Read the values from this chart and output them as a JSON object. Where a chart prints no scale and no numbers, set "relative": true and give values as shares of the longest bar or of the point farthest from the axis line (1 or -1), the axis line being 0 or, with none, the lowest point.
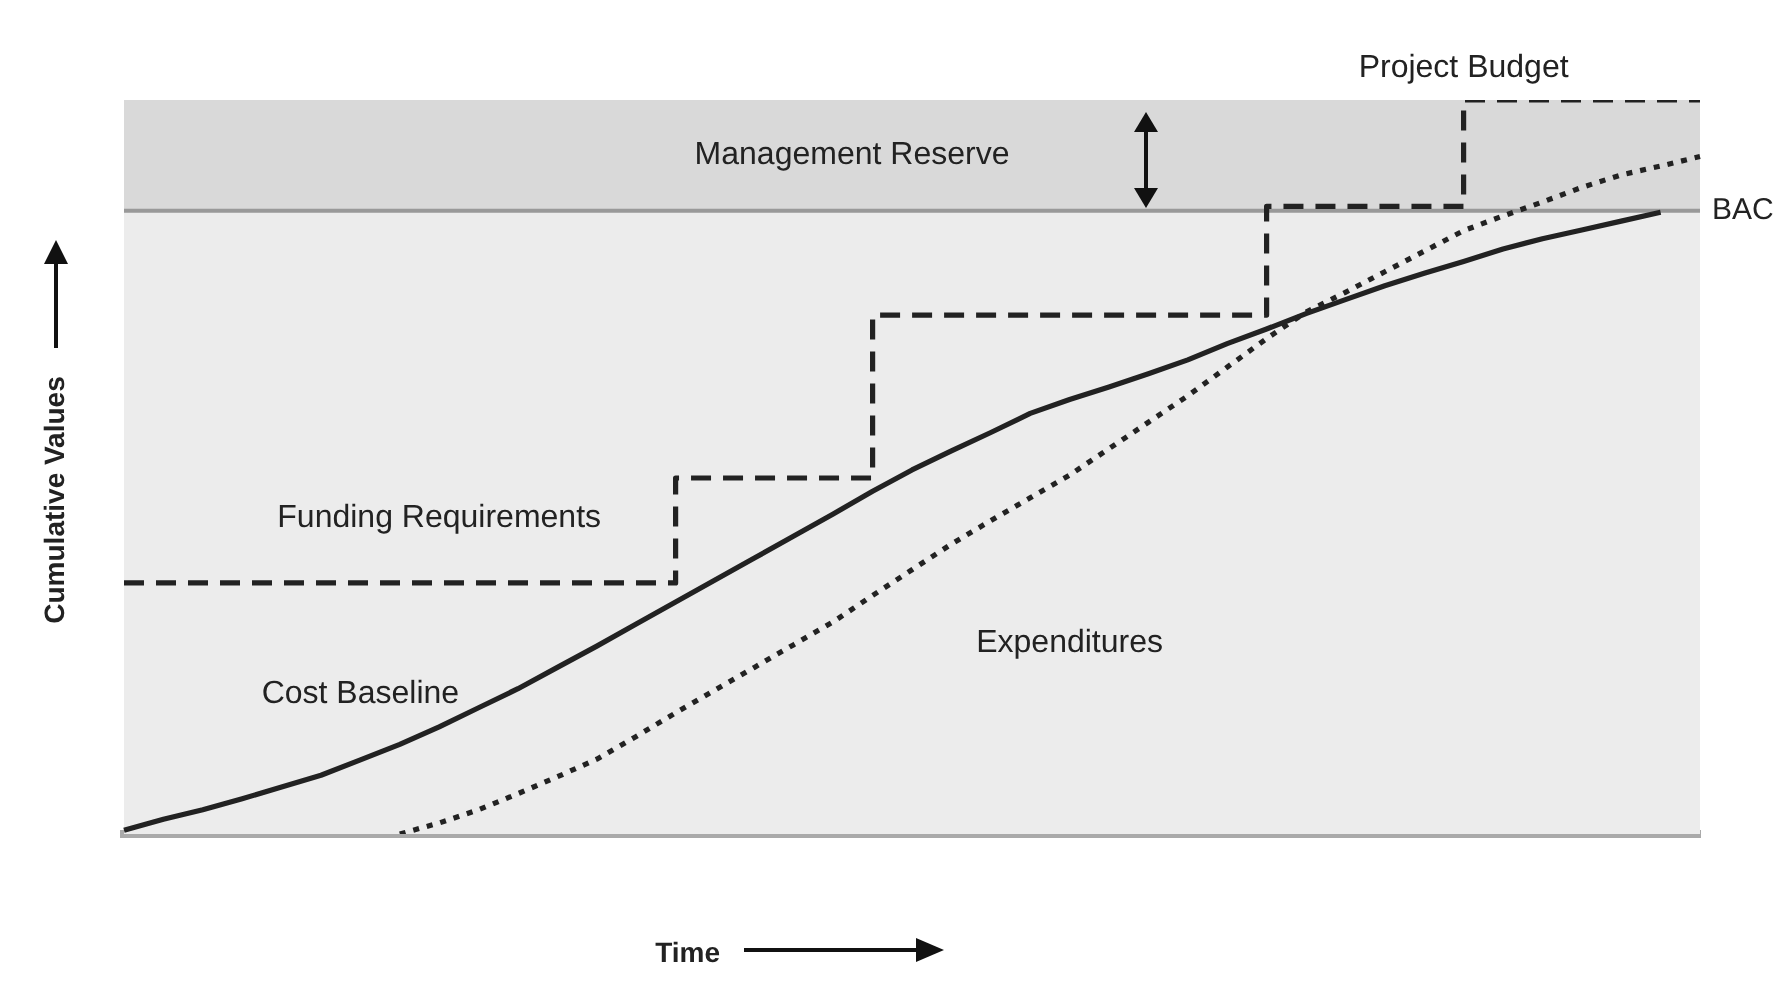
{
  "chart_data": {
    "type": "line",
    "xlabel": "Time",
    "ylabel": "Cumulative Values",
    "relative": true,
    "tick_labels": false,
    "legend": false,
    "categories": [
      null,
      null,
      null,
      null,
      null,
      null,
      null,
      null,
      null,
      null,
      null,
      null,
      null,
      null,
      null,
      null,
      null,
      null,
      null,
      null,
      null,
      null,
      null,
      null,
      null,
      null,
      null,
      null,
      null,
      null,
      null,
      null,
      null,
      null,
      null,
      null,
      null,
      null,
      null,
      null,
      null
    ],
    "series": [
      {
        "name": "Cost Baseline",
        "line_style": "solid",
        "color": "#222222",
        "values": [
          0.005,
          0.02,
          0.033,
          0.048,
          0.064,
          0.08,
          0.101,
          0.122,
          0.146,
          0.172,
          0.198,
          0.227,
          0.256,
          0.286,
          0.316,
          0.346,
          0.376,
          0.406,
          0.436,
          0.467,
          0.496,
          0.522,
          0.547,
          0.573,
          0.592,
          0.609,
          0.627,
          0.646,
          0.668,
          0.688,
          0.709,
          0.728,
          0.747,
          0.764,
          0.78,
          0.797,
          0.811,
          0.823,
          0.835,
          0.847,
          null
        ]
      },
      {
        "name": "Expenditures",
        "line_style": "dotted",
        "color": "#222222",
        "values": [
          null,
          null,
          null,
          null,
          null,
          null,
          null,
          0,
          0.015,
          0.033,
          0.055,
          0.078,
          0.102,
          0.133,
          0.165,
          0.196,
          0.227,
          0.258,
          0.289,
          0.325,
          0.36,
          0.395,
          0.427,
          0.458,
          0.489,
          0.525,
          0.561,
          0.597,
          0.636,
          0.675,
          0.711,
          0.738,
          0.766,
          0.794,
          0.822,
          0.842,
          0.861,
          0.881,
          0.898,
          0.91,
          0.923
        ]
      },
      {
        "name": "Funding Requirements",
        "type": "step",
        "line_style": "dashed",
        "color": "#222222",
        "values": [
          0.342,
          0.342,
          0.342,
          0.342,
          0.342,
          0.342,
          0.342,
          0.342,
          0.342,
          0.342,
          0.342,
          0.342,
          0.342,
          0.342,
          0.342,
          0.485,
          0.485,
          0.485,
          0.485,
          0.485,
          0.707,
          0.707,
          0.707,
          0.707,
          0.707,
          0.707,
          0.707,
          0.707,
          0.707,
          0.707,
          0.855,
          0.855,
          0.855,
          0.855,
          0.855,
          1.0,
          1.0,
          1.0,
          1.0,
          1.0,
          1.0
        ]
      }
    ],
    "ref_lines": [
      {
        "axis": "y",
        "value": 0.849,
        "label": "BAC",
        "color": "#999999"
      }
    ],
    "bands": [
      {
        "axis": "y",
        "from": 0.849,
        "to": 1.0,
        "label": "Management Reserve",
        "color": "#d9d9d9"
      }
    ],
    "annotations": [
      {
        "text": "Project Budget",
        "y": 1.0
      }
    ]
  }
}
